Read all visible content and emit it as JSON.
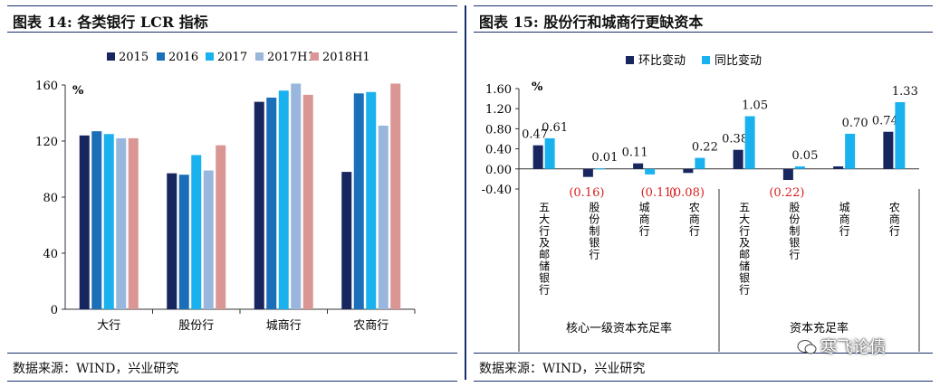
{
  "chart_data": [
    {
      "type": "bar",
      "title": "图表 14:  各类银行 LCR 指标",
      "ylabel": "%",
      "ylim": [
        0,
        160
      ],
      "yticks": [
        "0",
        "40",
        "80",
        "120",
        "160"
      ],
      "categories": [
        "大行",
        "股份行",
        "城商行",
        "农商行"
      ],
      "legend": "top",
      "series": [
        {
          "name": "2015",
          "color": "#17265e",
          "values": [
            124,
            97,
            148,
            98
          ]
        },
        {
          "name": "2016",
          "color": "#1b6fb8",
          "values": [
            127,
            96,
            151,
            154
          ]
        },
        {
          "name": "2017",
          "color": "#19b2ef",
          "values": [
            125,
            110,
            156,
            155
          ]
        },
        {
          "name": "2017H1",
          "color": "#99b6dc",
          "values": [
            122,
            99,
            161,
            131
          ]
        },
        {
          "name": "2018H1",
          "color": "#d99694",
          "values": [
            122,
            117,
            153,
            161
          ]
        }
      ],
      "source": "数据来源：WIND，兴业研究"
    },
    {
      "type": "bar",
      "title": "图表 15:  股份行和城商行更缺资本",
      "ylabel": "%",
      "ylim": [
        -0.4,
        1.6
      ],
      "yticks": [
        "-0.40",
        "0.00",
        "0.40",
        "0.80",
        "1.20",
        "1.60"
      ],
      "categories": [
        "五大行及邮储银行",
        "股份制银行",
        "城商行",
        "农商行",
        "五大行及邮储银行",
        "股份制银行",
        "城商行",
        "农商行"
      ],
      "groups": [
        "核心一级资本充足率",
        "资本充足率"
      ],
      "legend": "top",
      "series": [
        {
          "name": "环比变动",
          "color": "#17265e",
          "values": [
            0.47,
            -0.16,
            0.11,
            -0.08,
            0.38,
            -0.22,
            0.05,
            0.74
          ],
          "labels": [
            "0.47",
            "(0.16)",
            "0.11",
            "(0.08)",
            "0.38",
            "(0.22)",
            "",
            "0.74"
          ]
        },
        {
          "name": "同比变动",
          "color": "#19b2ef",
          "values": [
            0.61,
            0.01,
            -0.11,
            0.22,
            1.05,
            0.05,
            0.7,
            1.33
          ],
          "labels": [
            "0.61",
            "0.01",
            "(0.11)",
            "0.22",
            "1.05",
            "0.05",
            "0.70",
            "1.33"
          ]
        }
      ],
      "source": "数据来源：WIND，兴业研究"
    }
  ],
  "watermark": {
    "text": "寒飞论债",
    "icon": "wechat-icon"
  }
}
